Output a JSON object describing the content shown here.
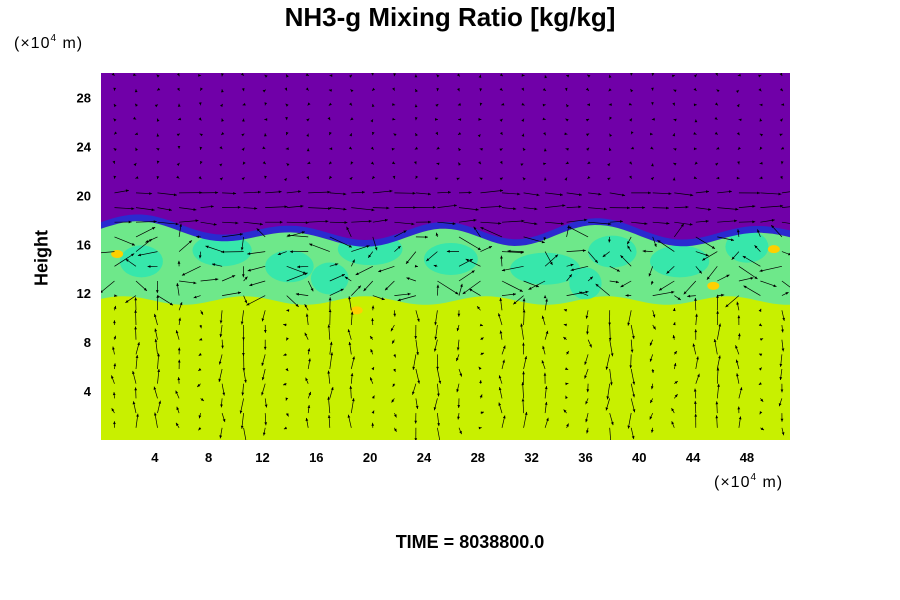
{
  "chart_data": {
    "type": "heatmap",
    "title": "NH3-g Mixing Ratio [kg/kg]",
    "ylabel": "Height",
    "xlabel": "",
    "y_unit": {
      "prefix": "(×10",
      "exp": "4",
      "suffix": " m)"
    },
    "x_unit": {
      "prefix": "(×10",
      "exp": "4",
      "suffix": " m)"
    },
    "xlim": [
      0,
      51.2
    ],
    "ylim": [
      0,
      30
    ],
    "x_ticks": [
      4,
      8,
      12,
      16,
      20,
      24,
      28,
      32,
      36,
      40,
      44,
      48
    ],
    "y_ticks": [
      4,
      8,
      12,
      16,
      20,
      24,
      28
    ],
    "time_label": "TIME = ",
    "time_value": "8038800.0",
    "overlay": "wind vectors",
    "colors": {
      "upper": "#7000a8",
      "edge": "#2a2ad0",
      "band": "#2ee6b0",
      "mixed": "#6ee88a",
      "lower": "#c8f000",
      "spot": "#ffd000"
    }
  }
}
